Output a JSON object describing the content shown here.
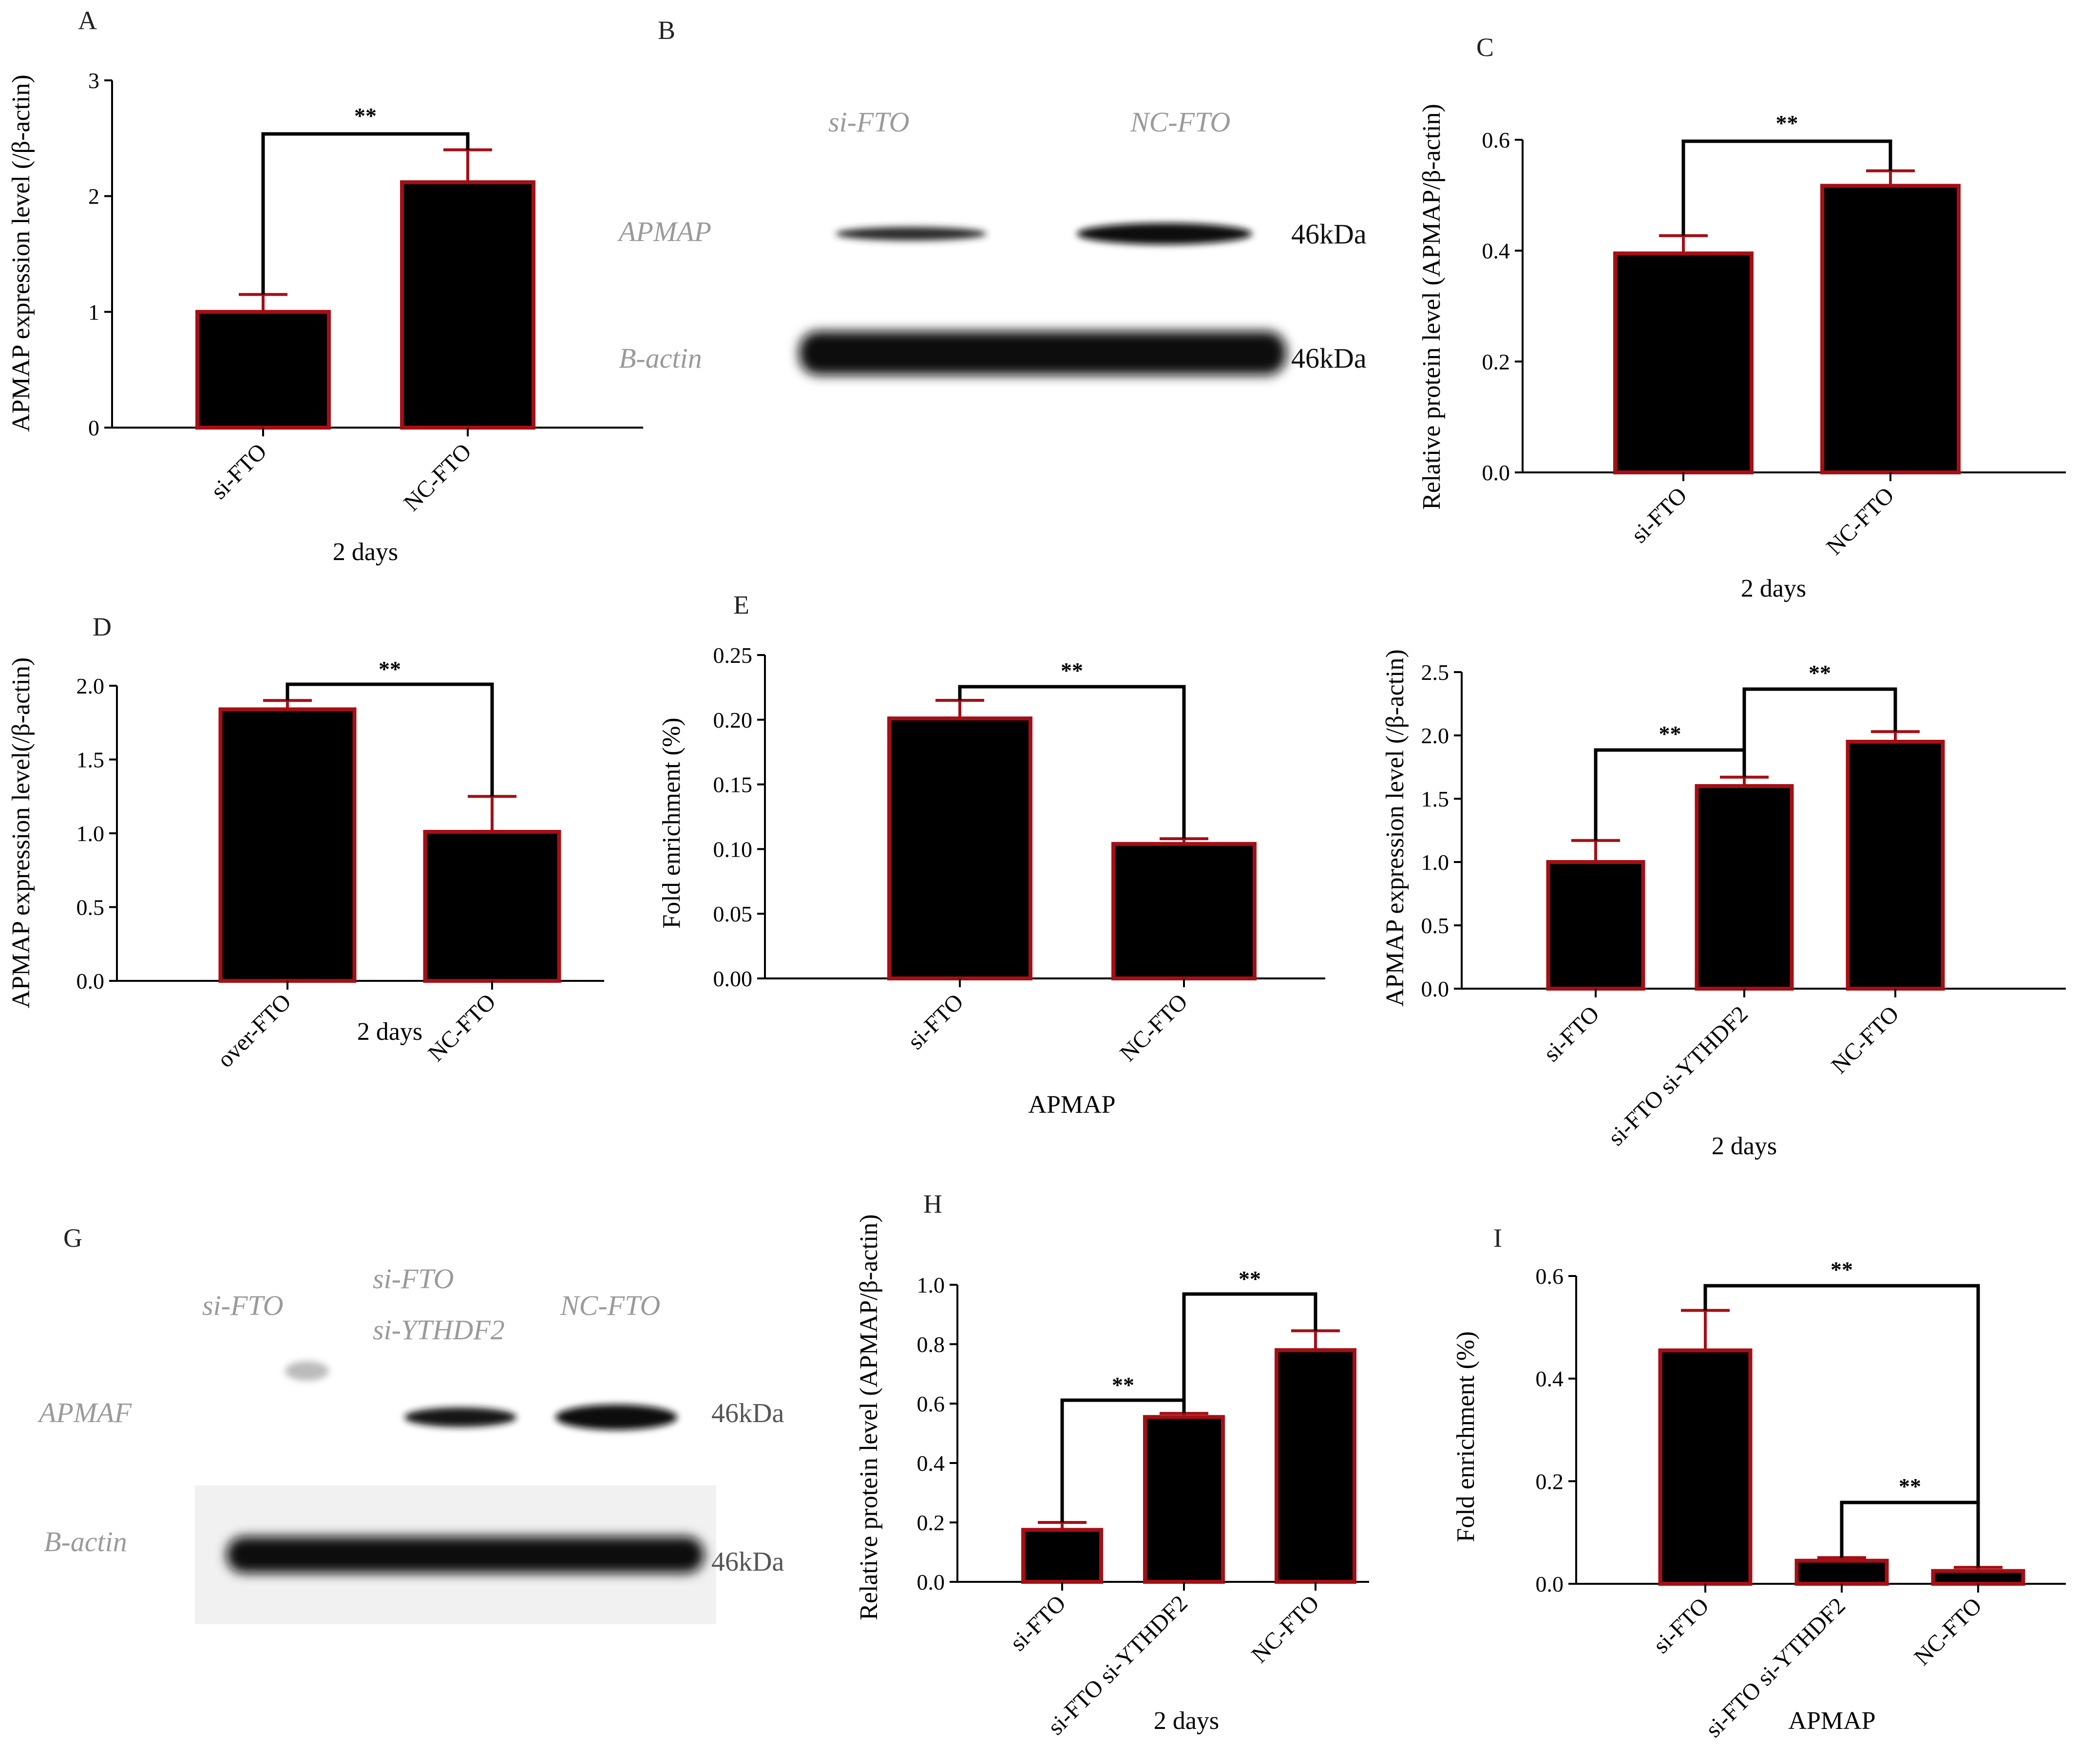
{
  "colors": {
    "bar_fill": "#000000",
    "bar_edge": "#a50f15",
    "error_bar": "#a50f15",
    "axis": "#000000",
    "bracket": "#000000"
  },
  "chart_data": [
    {
      "panel": "A",
      "type": "bar",
      "categories": [
        "si-FTO",
        "NC-FTO"
      ],
      "values": [
        1.0,
        2.12
      ],
      "errors": [
        0.15,
        0.28
      ],
      "xlabel": "2 days",
      "ylabel": "APMAP expression level (/β-actin)",
      "ylim": [
        0,
        3
      ],
      "yticks": [
        "0",
        "1",
        "2",
        "3"
      ],
      "yticks_values": [
        0,
        1,
        2,
        3
      ],
      "significance": [
        {
          "from": 0,
          "to": 1,
          "label": "**"
        }
      ]
    },
    {
      "panel": "C",
      "type": "bar",
      "categories": [
        "si-FTO",
        "NC-FTO"
      ],
      "values": [
        0.395,
        0.517
      ],
      "errors": [
        0.032,
        0.027
      ],
      "xlabel": "2 days",
      "ylabel": "Relative protein level (APMAP/β-actin)",
      "ylim": [
        0,
        0.6
      ],
      "yticks": [
        "0.0",
        "0.2",
        "0.4",
        "0.6"
      ],
      "yticks_values": [
        0,
        0.2,
        0.4,
        0.6
      ],
      "significance": [
        {
          "from": 0,
          "to": 1,
          "label": "**"
        }
      ]
    },
    {
      "panel": "D",
      "type": "bar",
      "categories": [
        "over-FTO",
        "NC-FTO"
      ],
      "values": [
        1.84,
        1.01
      ],
      "errors": [
        0.06,
        0.24
      ],
      "xlabel": "2 days",
      "ylabel": "APMAP expression level(/β-actin)",
      "ylim": [
        0,
        2.0
      ],
      "yticks": [
        "0.0",
        "0.5",
        "1.0",
        "1.5",
        "2.0"
      ],
      "yticks_values": [
        0,
        0.5,
        1.0,
        1.5,
        2.0
      ],
      "significance": [
        {
          "from": 0,
          "to": 1,
          "label": "**"
        }
      ]
    },
    {
      "panel": "E",
      "type": "bar",
      "categories": [
        "si-FTO",
        "NC-FTO"
      ],
      "values": [
        0.201,
        0.104
      ],
      "errors": [
        0.014,
        0.004
      ],
      "xlabel": "APMAP",
      "ylabel": "Fold enrichment (%)",
      "ylim": [
        0,
        0.25
      ],
      "yticks": [
        "0.00",
        "0.05",
        "0.10",
        "0.15",
        "0.20",
        "0.25"
      ],
      "yticks_values": [
        0,
        0.05,
        0.1,
        0.15,
        0.2,
        0.25
      ],
      "significance": [
        {
          "from": 0,
          "to": 1,
          "label": "**"
        }
      ]
    },
    {
      "panel": "F",
      "type": "bar",
      "categories": [
        "si-FTO",
        "si-FTO si-YTHDF2",
        "NC-FTO"
      ],
      "values": [
        1.0,
        1.6,
        1.95
      ],
      "errors": [
        0.17,
        0.07,
        0.08
      ],
      "xlabel": "2 days",
      "ylabel": "APMAP expression level (/β-actin)",
      "ylim": [
        0,
        2.5
      ],
      "yticks": [
        "0.0",
        "0.5",
        "1.0",
        "1.5",
        "2.0",
        "2.5"
      ],
      "yticks_values": [
        0,
        0.5,
        1.0,
        1.5,
        2.0,
        2.5
      ],
      "significance": [
        {
          "from": 0,
          "to": 1,
          "label": "**"
        },
        {
          "from": 1,
          "to": 2,
          "label": "**"
        }
      ]
    },
    {
      "panel": "H",
      "type": "bar",
      "categories": [
        "si-FTO",
        "si-FTO si-YTHDF2",
        "NC-FTO"
      ],
      "values": [
        0.175,
        0.555,
        0.78
      ],
      "errors": [
        0.025,
        0.012,
        0.065
      ],
      "xlabel": "2 days",
      "ylabel": "Relative protein level (APMAP/β-actin)",
      "ylim": [
        0,
        1.0
      ],
      "yticks": [
        "0.0",
        "0.2",
        "0.4",
        "0.6",
        "0.8",
        "1.0"
      ],
      "yticks_values": [
        0,
        0.2,
        0.4,
        0.6,
        0.8,
        1.0
      ],
      "significance": [
        {
          "from": 0,
          "to": 1,
          "label": "**"
        },
        {
          "from": 1,
          "to": 2,
          "label": "**"
        }
      ]
    },
    {
      "panel": "I",
      "type": "bar",
      "categories": [
        "si-FTO",
        "si-FTO si-YTHDF2",
        "NC-FTO"
      ],
      "values": [
        0.455,
        0.045,
        0.025
      ],
      "errors": [
        0.078,
        0.006,
        0.007
      ],
      "xlabel": "APMAP",
      "ylabel": "Fold enrichment (%)",
      "ylim": [
        0,
        0.6
      ],
      "yticks": [
        "0.0",
        "0.2",
        "0.4",
        "0.6"
      ],
      "yticks_values": [
        0,
        0.2,
        0.4,
        0.6
      ],
      "significance": [
        {
          "from": 0,
          "to": 2,
          "label": "**"
        },
        {
          "from": 1,
          "to": 2,
          "label": "**"
        }
      ]
    }
  ],
  "blots": {
    "B": {
      "lanes": [
        "si-FTO",
        "NC-FTO"
      ],
      "rows": [
        {
          "label": "APMAP",
          "kda": "46kDa"
        },
        {
          "label": "B-actin",
          "kda": "46kDa"
        }
      ]
    },
    "G": {
      "lanes": [
        "si-FTO",
        "si-FTO",
        "si-YTHDF2",
        "NC-FTO"
      ],
      "rows": [
        {
          "label": "APMAF",
          "kda": "46kDa"
        },
        {
          "label": "B-actin",
          "kda": "46kDa"
        }
      ]
    }
  },
  "panel_letters": [
    "A",
    "B",
    "C",
    "D",
    "E",
    "H",
    "I",
    "G"
  ]
}
